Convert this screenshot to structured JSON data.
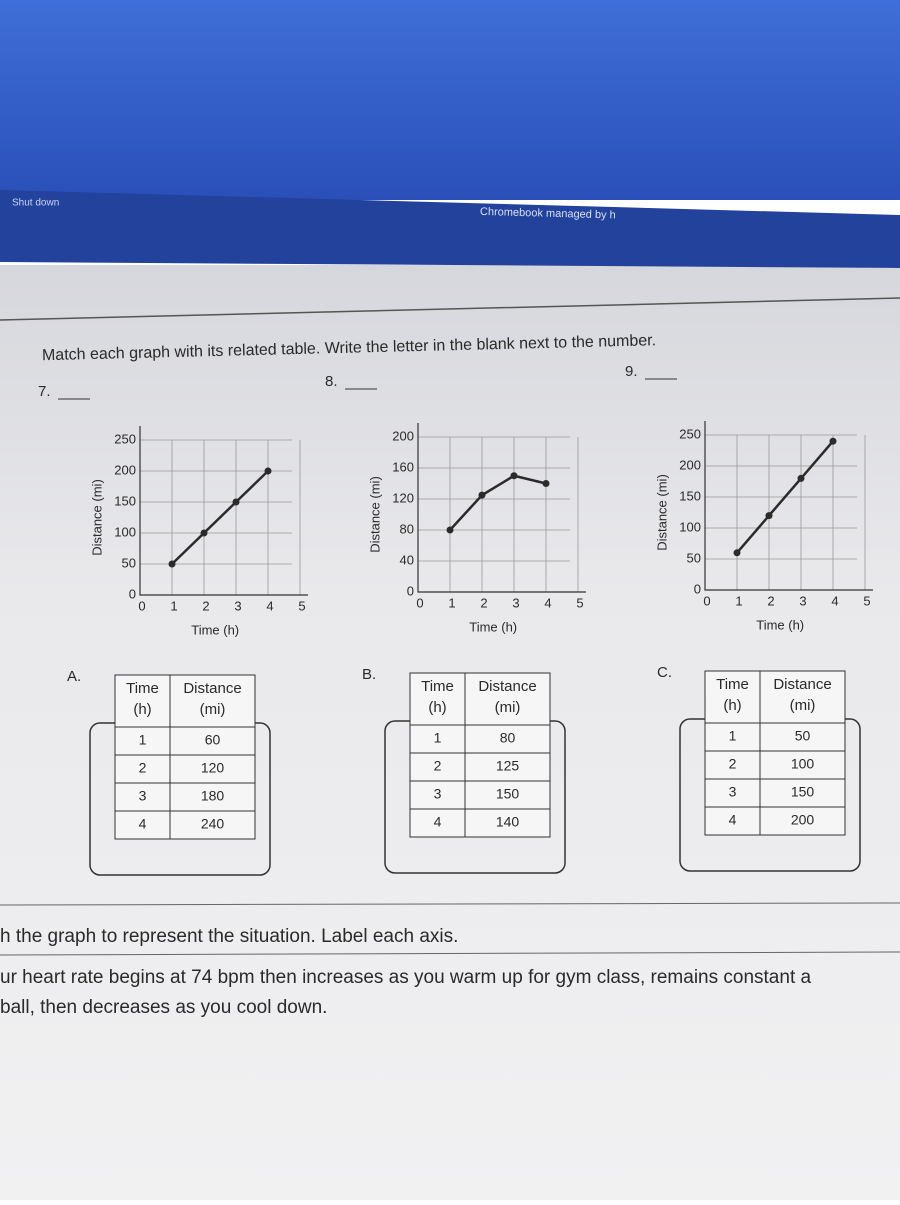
{
  "screen": {
    "shutdown": "Shut down",
    "managed": "Chromebook managed by h"
  },
  "instructions": "Match each graph with its related table. Write the letter in the blank next to the number.",
  "chart_data": [
    {
      "type": "line",
      "label": "7.",
      "xlabel": "Time (h)",
      "ylabel": "Distance (mi)",
      "x": [
        1,
        2,
        3,
        4
      ],
      "values": [
        50,
        100,
        150,
        200
      ],
      "xlim": [
        0,
        5
      ],
      "ylim": [
        0,
        250
      ],
      "xticks": [
        0,
        1,
        2,
        3,
        4,
        5
      ],
      "yticks": [
        0,
        50,
        100,
        150,
        200,
        250
      ],
      "color": "#2b2b2b",
      "grid": true
    },
    {
      "type": "line",
      "label": "8.",
      "xlabel": "Time (h)",
      "ylabel": "Distance (mi)",
      "x": [
        1,
        2,
        3,
        4
      ],
      "values": [
        80,
        125,
        150,
        140
      ],
      "xlim": [
        0,
        5
      ],
      "ylim": [
        0,
        200
      ],
      "xticks": [
        0,
        1,
        2,
        3,
        4,
        5
      ],
      "yticks": [
        0,
        40,
        80,
        120,
        160,
        200
      ],
      "color": "#2b2b2b",
      "grid": true
    },
    {
      "type": "line",
      "label": "9.",
      "xlabel": "Time (h)",
      "ylabel": "Distance (mi)",
      "x": [
        1,
        2,
        3,
        4
      ],
      "values": [
        60,
        120,
        180,
        240
      ],
      "xlim": [
        0,
        5
      ],
      "ylim": [
        0,
        250
      ],
      "xticks": [
        0,
        1,
        2,
        3,
        4,
        5
      ],
      "yticks": [
        0,
        50,
        100,
        150,
        200,
        250
      ],
      "color": "#2b2b2b",
      "grid": true
    }
  ],
  "tables": [
    {
      "letter": "A.",
      "header": [
        [
          "Time",
          "(h)"
        ],
        [
          "Distance",
          "(mi)"
        ]
      ],
      "rows": [
        [
          1,
          60
        ],
        [
          2,
          120
        ],
        [
          3,
          180
        ],
        [
          4,
          240
        ]
      ]
    },
    {
      "letter": "B.",
      "header": [
        [
          "Time",
          "(h)"
        ],
        [
          "Distance",
          "(mi)"
        ]
      ],
      "rows": [
        [
          1,
          80
        ],
        [
          2,
          125
        ],
        [
          3,
          150
        ],
        [
          4,
          140
        ]
      ]
    },
    {
      "letter": "C.",
      "header": [
        [
          "Time",
          "(h)"
        ],
        [
          "Distance",
          "(mi)"
        ]
      ],
      "rows": [
        [
          1,
          50
        ],
        [
          2,
          100
        ],
        [
          3,
          150
        ],
        [
          4,
          200
        ]
      ]
    }
  ],
  "footer": {
    "heading": "h the graph to represent the situation. Label each axis.",
    "lines": [
      "ur heart rate begins at 74 bpm then increases as you warm up for gym class, remains constant a",
      "ball, then decreases as you cool down."
    ]
  }
}
